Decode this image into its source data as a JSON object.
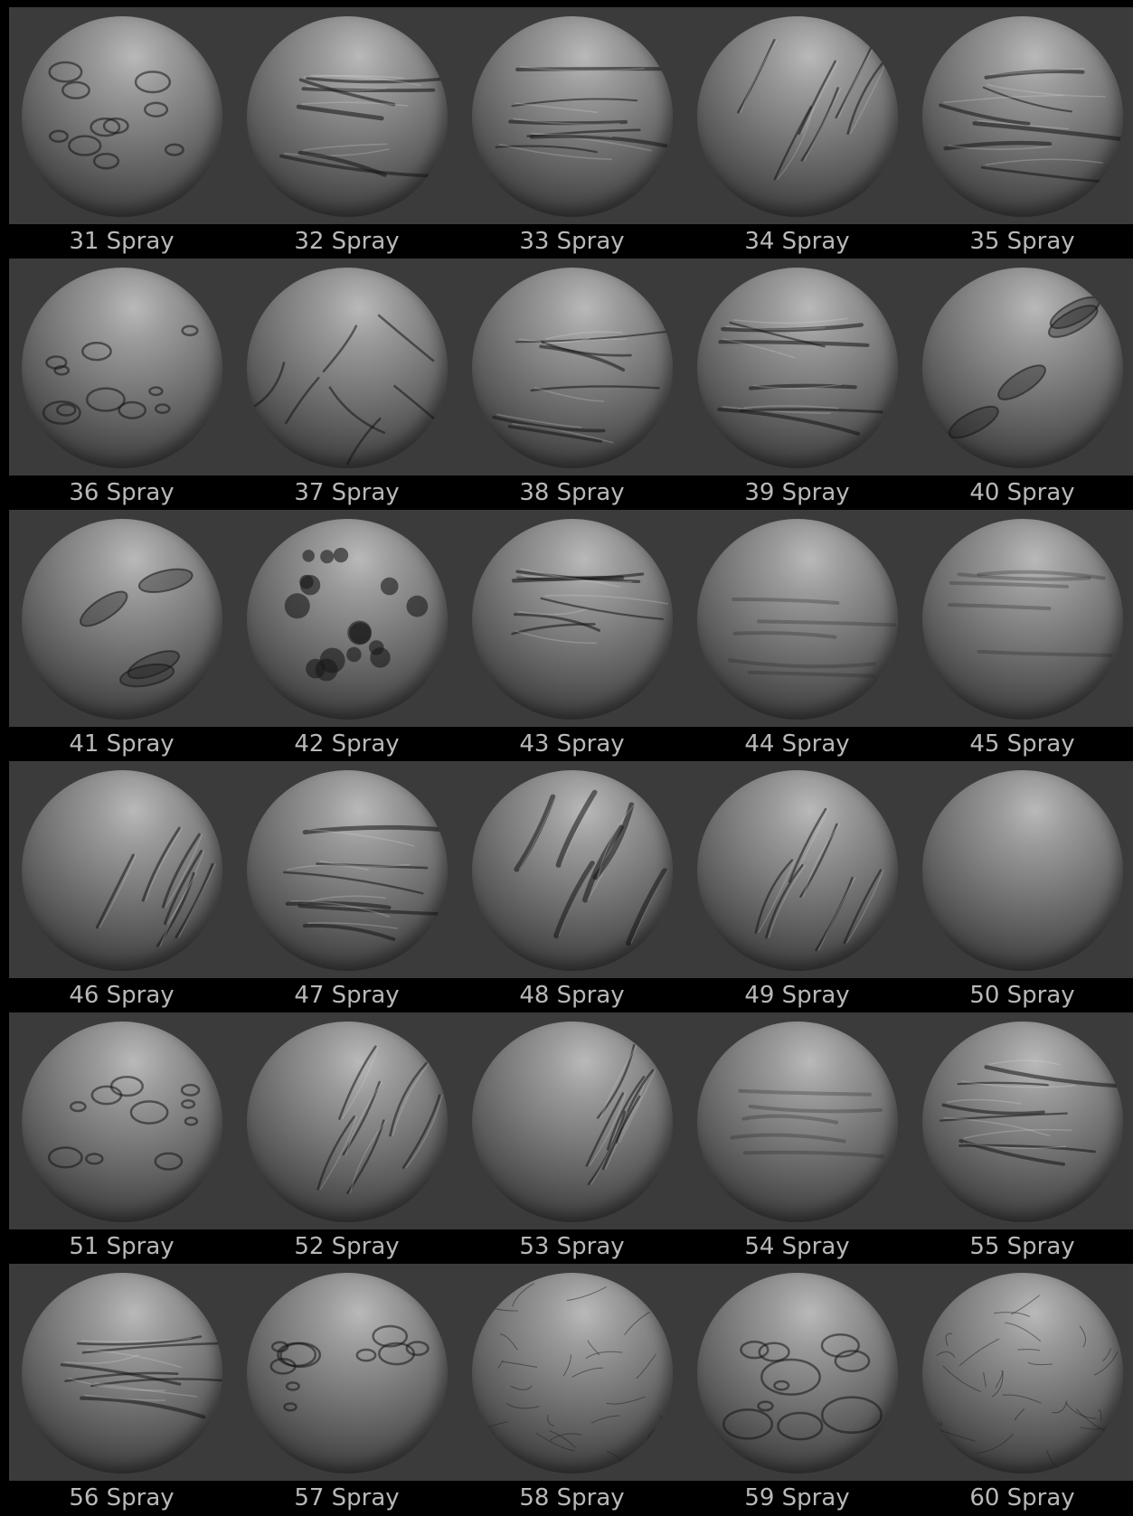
{
  "brushes": [
    {
      "label": "31 Spray"
    },
    {
      "label": "32 Spray"
    },
    {
      "label": "33 Spray"
    },
    {
      "label": "34 Spray"
    },
    {
      "label": "35 Spray"
    },
    {
      "label": "36 Spray"
    },
    {
      "label": "37 Spray"
    },
    {
      "label": "38 Spray"
    },
    {
      "label": "39 Spray"
    },
    {
      "label": "40 Spray"
    },
    {
      "label": "41 Spray"
    },
    {
      "label": "42 Spray"
    },
    {
      "label": "43 Spray"
    },
    {
      "label": "44 Spray"
    },
    {
      "label": "45 Spray"
    },
    {
      "label": "46 Spray"
    },
    {
      "label": "47 Spray"
    },
    {
      "label": "48 Spray"
    },
    {
      "label": "49 Spray"
    },
    {
      "label": "50 Spray"
    },
    {
      "label": "51 Spray"
    },
    {
      "label": "52 Spray"
    },
    {
      "label": "53 Spray"
    },
    {
      "label": "54 Spray"
    },
    {
      "label": "55 Spray"
    },
    {
      "label": "56 Spray"
    },
    {
      "label": "57 Spray"
    },
    {
      "label": "58 Spray"
    },
    {
      "label": "59 Spray"
    },
    {
      "label": "60 Spray"
    }
  ],
  "colors": {
    "background": "#000000",
    "tile": "#3b3b3b",
    "label_text": "#b8b8b8"
  }
}
